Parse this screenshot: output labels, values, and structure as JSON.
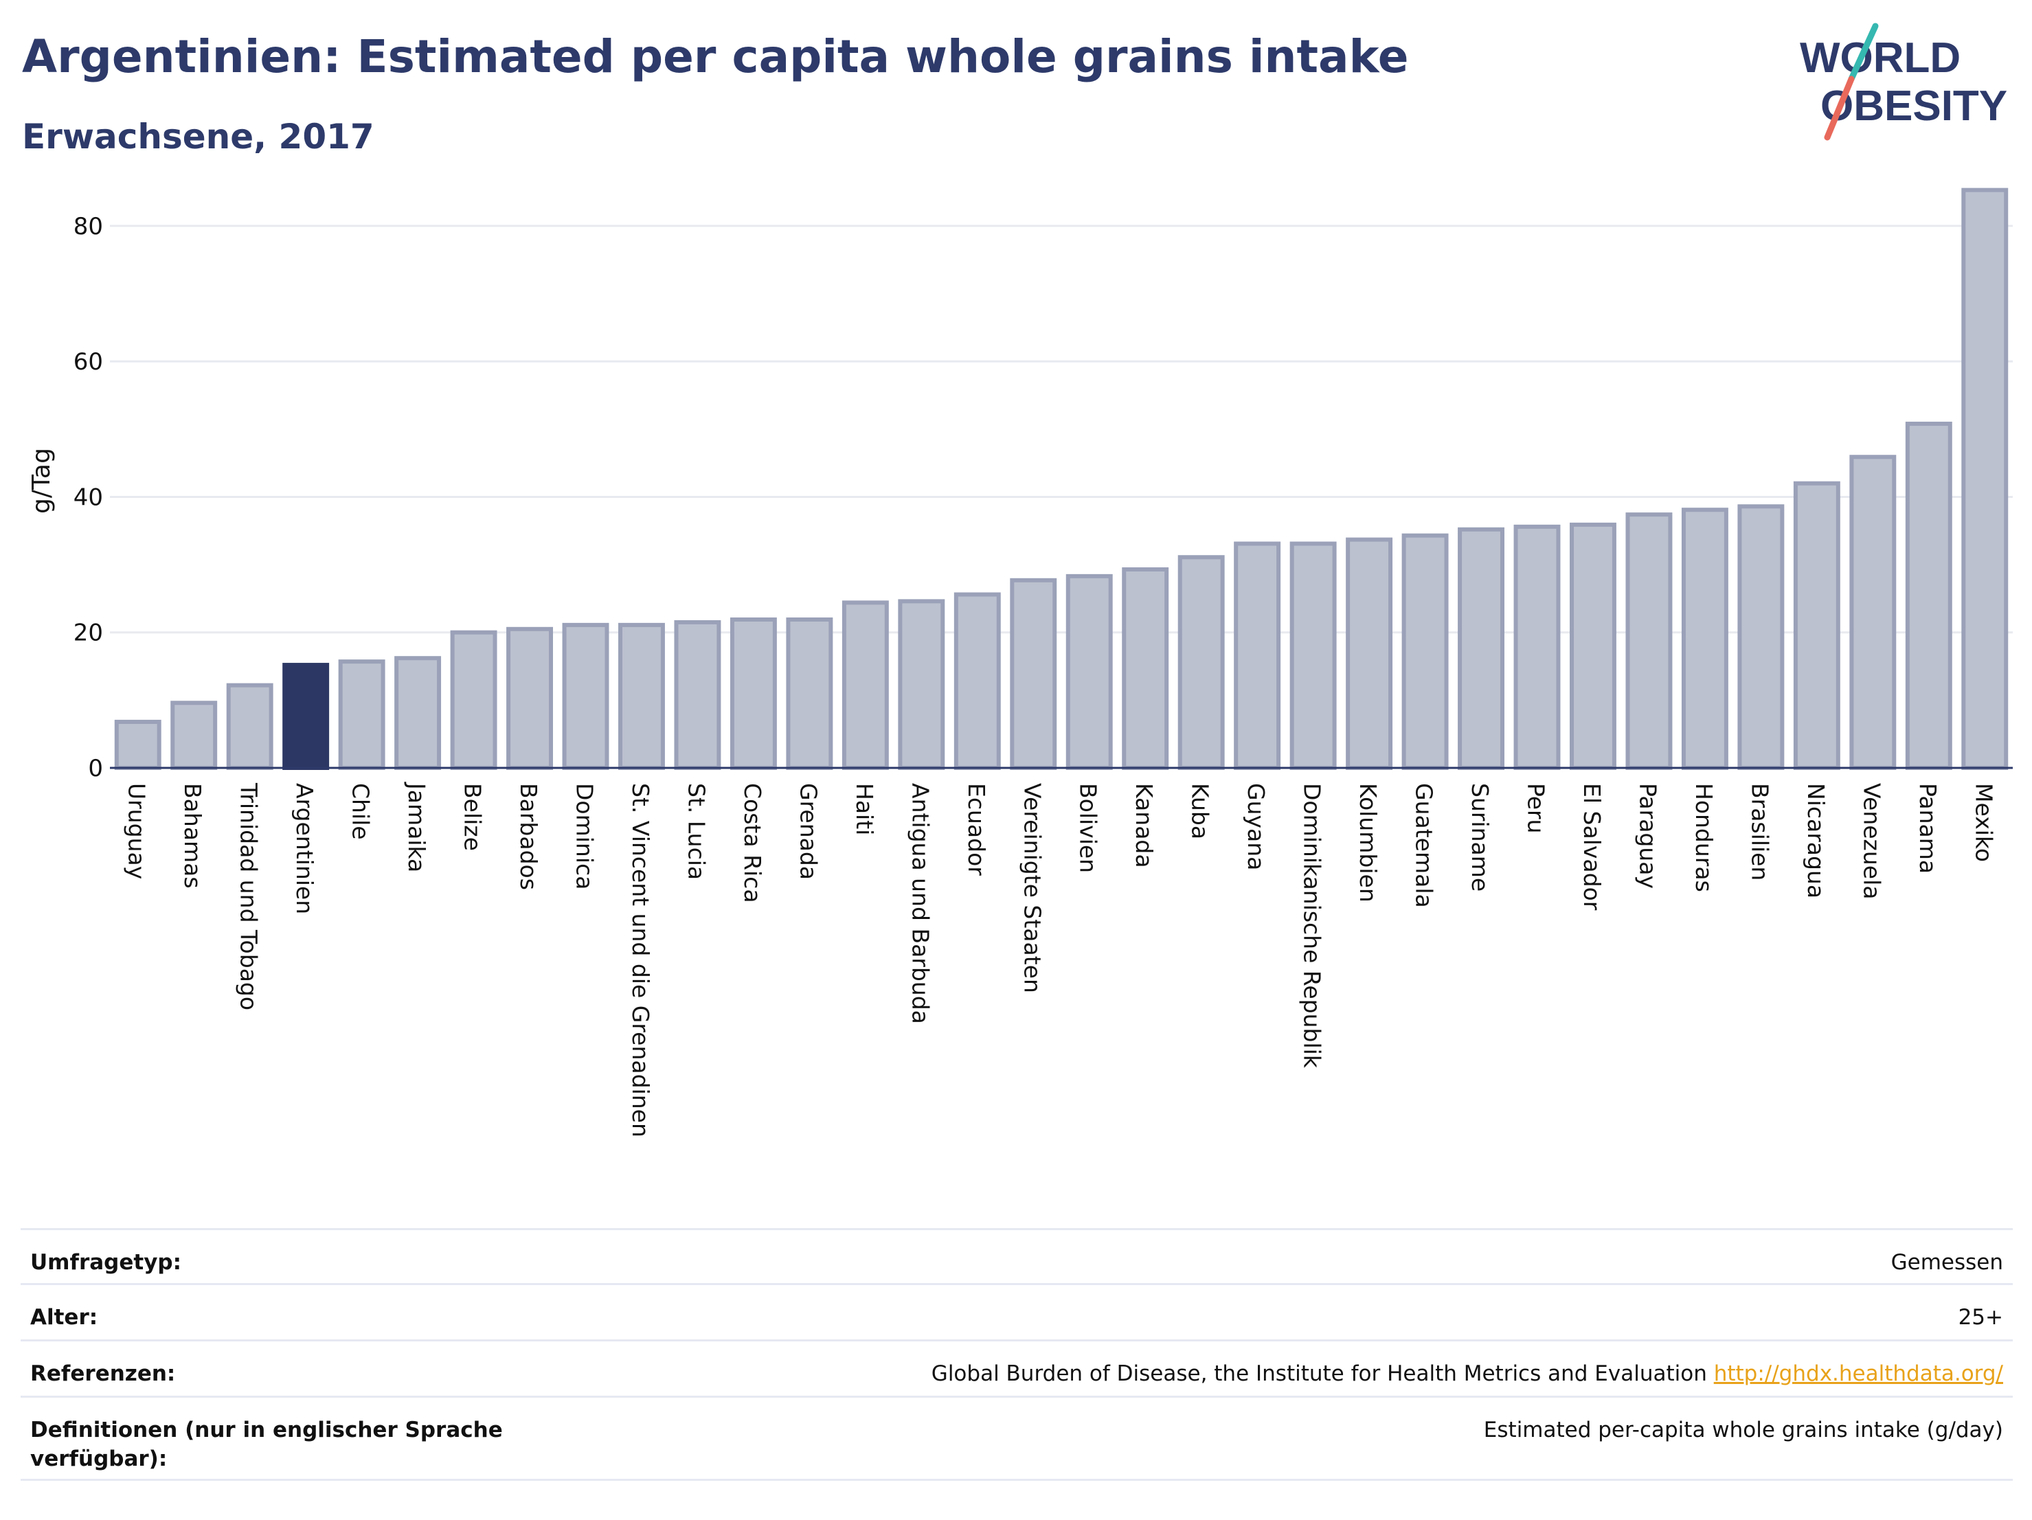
{
  "header": {
    "title": "Argentinien: Estimated per capita whole grains intake",
    "subtitle": "Erwachsene, 2017"
  },
  "logo": {
    "line1": "WORLD",
    "line2": "OBESITY"
  },
  "colors": {
    "highlight_bar": "#2c3763",
    "bar_fill": "#bcc1cf",
    "bar_stroke": "#9aa1b8",
    "grid": "#e8eaf0",
    "text": "#2d3a6a",
    "logo_teal": "#35b8b0",
    "logo_coral": "#e8695b"
  },
  "chart_data": {
    "type": "bar",
    "title": "Argentinien: Estimated per capita whole grains intake",
    "subtitle": "Erwachsene, 2017",
    "ylabel": "g/Tag",
    "xlabel": "",
    "ylim": [
      0,
      88
    ],
    "yticks": [
      0,
      20,
      40,
      60,
      80
    ],
    "grid": true,
    "highlight": "Argentinien",
    "categories": [
      "Uruguay",
      "Bahamas",
      "Trinidad und Tobago",
      "Argentinien",
      "Chile",
      "Jamaika",
      "Belize",
      "Barbados",
      "Dominica",
      "St. Vincent und die Grenadinen",
      "St. Lucia",
      "Costa Rica",
      "Grenada",
      "Haiti",
      "Antigua und Barbuda",
      "Ecuador",
      "Vereinigte Staaten",
      "Bolivien",
      "Kanada",
      "Kuba",
      "Guyana",
      "Dominikanische Republik",
      "Kolumbien",
      "Guatemala",
      "Suriname",
      "Peru",
      "El Salvador",
      "Paraguay",
      "Honduras",
      "Brasilien",
      "Nicaragua",
      "Venezuela",
      "Panama",
      "Mexiko"
    ],
    "values": [
      6.8,
      9.6,
      12.2,
      15.2,
      15.7,
      16.2,
      20.0,
      20.5,
      21.1,
      21.1,
      21.5,
      21.9,
      21.9,
      24.4,
      24.6,
      25.6,
      27.7,
      28.3,
      29.3,
      31.1,
      33.1,
      33.1,
      33.7,
      34.3,
      35.2,
      35.6,
      35.9,
      37.4,
      38.1,
      38.6,
      42.0,
      45.9,
      50.8,
      85.3
    ]
  },
  "meta": [
    {
      "key": "Umfragetyp:",
      "value": "Gemessen"
    },
    {
      "key": "Alter:",
      "value": "25+"
    },
    {
      "key": "Referenzen:",
      "value": "Global Burden of Disease, the Institute for Health Metrics and Evaluation",
      "link": "http://ghdx.healthdata.org/"
    },
    {
      "key": "Definitionen (nur in englischer Sprache verfügbar):",
      "value": "Estimated per-capita whole grains intake (g/day)"
    }
  ]
}
